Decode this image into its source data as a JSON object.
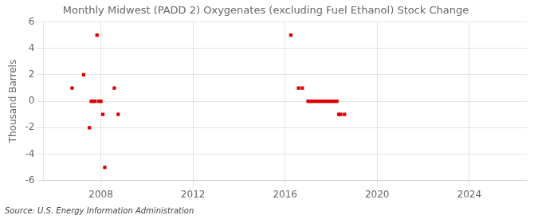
{
  "chart_data": {
    "type": "scatter",
    "title": "Monthly Midwest (PADD 2) Oxygenates (excluding Fuel Ethanol) Stock Change",
    "ylabel": "Thousand Barrels",
    "annotations": [
      "Source: U.S. Energy Information Administration"
    ],
    "color": "#dd0000",
    "marker": "square",
    "grid": true,
    "xlim": [
      2005.5,
      2026.5
    ],
    "xticks": [
      2008,
      2012,
      2016,
      2020,
      2024
    ],
    "ylim": [
      -6,
      6
    ],
    "yticks": [
      -6,
      -4,
      -2,
      0,
      2,
      4,
      6
    ],
    "x": [
      2006.75,
      2007.25,
      2007.5,
      2007.583,
      2007.667,
      2007.75,
      2007.833,
      2007.917,
      2008.0,
      2008.083,
      2008.167,
      2008.583,
      2008.75,
      2016.25,
      2016.583,
      2016.75,
      2017.0,
      2017.083,
      2017.167,
      2017.25,
      2017.333,
      2017.417,
      2017.5,
      2017.583,
      2017.667,
      2017.75,
      2017.833,
      2017.917,
      2018.0,
      2018.083,
      2018.167,
      2018.25,
      2018.333,
      2018.417,
      2018.583
    ],
    "values": [
      1,
      2,
      -2,
      0,
      0,
      0,
      5,
      0,
      0,
      -1,
      -5,
      1,
      -1,
      5,
      1,
      1,
      0,
      0,
      0,
      0,
      0,
      0,
      0,
      0,
      0,
      0,
      0,
      0,
      0,
      0,
      0,
      0,
      -1,
      -1,
      -1
    ]
  }
}
